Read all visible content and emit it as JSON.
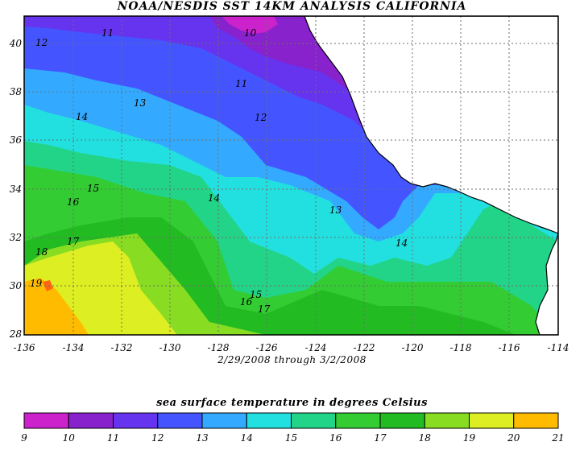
{
  "title": "NOAA/NESDIS SST 14KM ANALYSIS CALIFORNIA",
  "date_range": "2/29/2008 through 3/2/2008",
  "legend_title": "sea surface temperature in degrees Celsius",
  "x_ticks": [
    "-136",
    "-134",
    "-132",
    "-130",
    "-128",
    "-126",
    "-124",
    "-122",
    "-120",
    "-118",
    "-116",
    "-114"
  ],
  "y_ticks": [
    "40",
    "38",
    "36",
    "34",
    "32",
    "30",
    "28"
  ],
  "contour_labels": [
    "10",
    "11",
    "11",
    "12",
    "12",
    "13",
    "13",
    "14",
    "14",
    "14",
    "15",
    "15",
    "16",
    "16",
    "17",
    "17",
    "18",
    "19"
  ],
  "legend": {
    "labels": [
      "9",
      "10",
      "11",
      "12",
      "13",
      "14",
      "15",
      "16",
      "17",
      "18",
      "19",
      "20",
      "21"
    ],
    "colors": [
      "#cc22cc",
      "#8822cc",
      "#6633ee",
      "#4455ff",
      "#33aaff",
      "#22e0e0",
      "#22d488",
      "#33cc33",
      "#22bb22",
      "#88dd22",
      "#ddee22",
      "#ffbb00",
      "#ff6611"
    ]
  },
  "colors": {
    "land": "#ffffff",
    "grid": "#6d6d6d",
    "frame": "#000000"
  }
}
